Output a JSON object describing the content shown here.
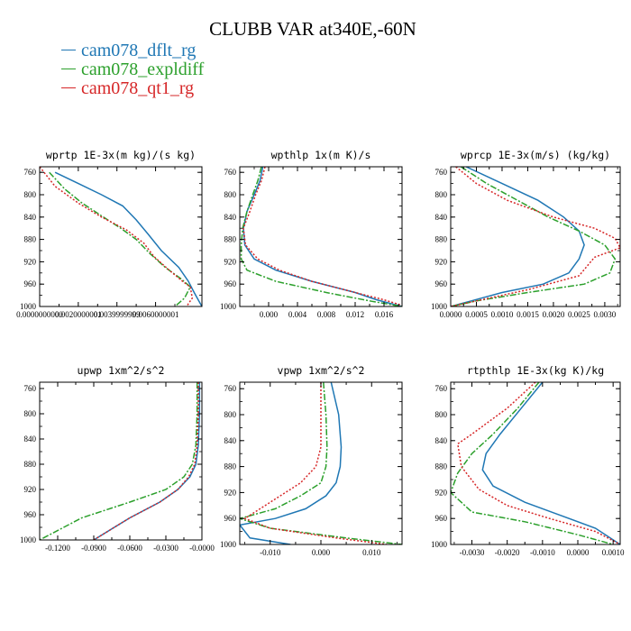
{
  "figure": {
    "title": "CLUBB VAR at340E,-60N",
    "legend": [
      {
        "name": "cam078_dflt_rg",
        "color": "#1f77b4",
        "dash": "solid"
      },
      {
        "name": "cam078_expldiff",
        "color": "#2ca02c",
        "dash": "dashdot"
      },
      {
        "name": "cam078_qt1_rg",
        "color": "#d62728",
        "dash": "dotted"
      }
    ]
  },
  "chart_data": [
    {
      "type": "line",
      "title": "wprtp  1E-3x(m kg)/(s kg)",
      "xlim": [
        0.0,
        0.0084
      ],
      "ylim": [
        1000,
        750
      ],
      "xticks": [
        0.0,
        0.002,
        0.004,
        0.006
      ],
      "xtick_labels": [
        "0.0000000000",
        "0.0020000001",
        "0.0039999999",
        "0.0060000001"
      ],
      "yticks": [
        760,
        800,
        840,
        880,
        920,
        960,
        1000
      ],
      "series": [
        {
          "name": "cam078_dflt_rg",
          "x": [
            0.0008,
            0.002,
            0.0032,
            0.0043,
            0.005,
            0.0056,
            0.0063,
            0.0072,
            0.0077,
            0.008,
            0.0084
          ],
          "y": [
            760,
            780,
            800,
            820,
            845,
            870,
            900,
            930,
            955,
            975,
            1000
          ]
        },
        {
          "name": "cam078_expldiff",
          "x": [
            0.0005,
            0.0013,
            0.0022,
            0.0033,
            0.0042,
            0.005,
            0.0057,
            0.0065,
            0.0073,
            0.0078,
            0.0075,
            0.007
          ],
          "y": [
            760,
            790,
            815,
            840,
            860,
            880,
            905,
            930,
            950,
            965,
            985,
            1000
          ]
        },
        {
          "name": "cam078_qt1_rg",
          "x": [
            0.0,
            0.0008,
            0.002,
            0.0032,
            0.0045,
            0.0054,
            0.0059,
            0.0067,
            0.0074,
            0.0078,
            0.0079,
            0.0076
          ],
          "y": [
            750,
            785,
            815,
            840,
            863,
            887,
            910,
            935,
            955,
            965,
            985,
            1000
          ]
        }
      ]
    },
    {
      "type": "line",
      "title": "wpthlp  1x(m K)/s",
      "xlim": [
        -0.004,
        0.0185
      ],
      "ylim": [
        1000,
        750
      ],
      "xticks": [
        0.0,
        0.004,
        0.008,
        0.012,
        0.016
      ],
      "xtick_labels": [
        "0.000",
        "0.004",
        "0.008",
        "0.012",
        "0.016"
      ],
      "yticks": [
        760,
        800,
        840,
        880,
        920,
        960,
        1000
      ],
      "series": [
        {
          "name": "cam078_dflt_rg",
          "x": [
            -0.0008,
            -0.0012,
            -0.002,
            -0.003,
            -0.0035,
            -0.0033,
            -0.002,
            0.001,
            0.006,
            0.012,
            0.015,
            0.0185
          ],
          "y": [
            750,
            775,
            800,
            830,
            860,
            890,
            915,
            935,
            955,
            975,
            988,
            1000
          ]
        },
        {
          "name": "cam078_expldiff",
          "x": [
            -0.001,
            -0.0015,
            -0.0022,
            -0.003,
            -0.0036,
            -0.0038,
            -0.0038,
            -0.003,
            0.001,
            0.008,
            0.014,
            0.0185
          ],
          "y": [
            750,
            775,
            800,
            830,
            860,
            890,
            915,
            935,
            955,
            975,
            990,
            1000
          ]
        },
        {
          "name": "cam078_qt1_rg",
          "x": [
            -0.0005,
            -0.001,
            -0.0018,
            -0.0026,
            -0.0035,
            -0.0032,
            -0.0015,
            0.0015,
            0.006,
            0.012,
            0.016,
            0.019
          ],
          "y": [
            750,
            775,
            800,
            830,
            860,
            890,
            915,
            935,
            955,
            975,
            988,
            1000
          ]
        }
      ]
    },
    {
      "type": "line",
      "title": "wprcp  1E-3x(m/s) (kg/kg)",
      "xlim": [
        0.0,
        0.0033
      ],
      "ylim": [
        1000,
        750
      ],
      "xticks": [
        0.0,
        0.0005,
        0.001,
        0.0015,
        0.002,
        0.0025,
        0.003
      ],
      "xtick_labels": [
        "0.0000",
        "0.0005",
        "0.0010",
        "0.0015",
        "0.0020",
        "0.0025",
        "0.0030"
      ],
      "yticks": [
        760,
        800,
        840,
        880,
        920,
        960,
        1000
      ],
      "series": [
        {
          "name": "cam078_dflt_rg",
          "x": [
            0.0003,
            0.001,
            0.0017,
            0.0022,
            0.0025,
            0.0026,
            0.0025,
            0.0023,
            0.0018,
            0.001,
            0.0004,
            0.0
          ],
          "y": [
            750,
            780,
            810,
            840,
            865,
            890,
            915,
            940,
            960,
            975,
            990,
            1000
          ]
        },
        {
          "name": "cam078_expldiff",
          "x": [
            0.0002,
            0.0007,
            0.0013,
            0.0019,
            0.0025,
            0.003,
            0.0032,
            0.0031,
            0.0026,
            0.0015,
            0.0005,
            0.0
          ],
          "y": [
            750,
            780,
            810,
            840,
            865,
            890,
            915,
            940,
            960,
            975,
            990,
            1000
          ]
        },
        {
          "name": "cam078_qt1_rg",
          "x": [
            0.0001,
            0.0005,
            0.0011,
            0.002,
            0.0028,
            0.0032,
            0.0033,
            0.0028,
            0.0025,
            0.0015,
            0.0005,
            0.0
          ],
          "y": [
            750,
            780,
            810,
            840,
            860,
            878,
            895,
            912,
            945,
            970,
            990,
            1000
          ]
        }
      ]
    },
    {
      "type": "line",
      "title": "upwp  1xm^2/s^2",
      "xlim": [
        -0.135,
        0.0
      ],
      "ylim": [
        1000,
        750
      ],
      "xticks": [
        -0.12,
        -0.09,
        -0.06,
        -0.03,
        0.0
      ],
      "xtick_labels": [
        "-0.1200",
        "-0.0900",
        "-0.0600",
        "-0.0300",
        "-0.0000"
      ],
      "yticks": [
        760,
        800,
        840,
        880,
        920,
        960,
        1000
      ],
      "series": [
        {
          "name": "cam078_dflt_rg",
          "x": [
            -0.002,
            -0.002,
            -0.003,
            -0.005,
            -0.01,
            -0.02,
            -0.035,
            -0.06,
            -0.09
          ],
          "y": [
            750,
            800,
            850,
            880,
            900,
            920,
            940,
            965,
            1000
          ]
        },
        {
          "name": "cam078_expldiff",
          "x": [
            -0.004,
            -0.004,
            -0.005,
            -0.008,
            -0.015,
            -0.03,
            -0.06,
            -0.1,
            -0.135
          ],
          "y": [
            750,
            800,
            850,
            880,
            900,
            920,
            940,
            965,
            1000
          ]
        },
        {
          "name": "cam078_qt1_rg",
          "x": [
            -0.003,
            -0.003,
            -0.004,
            -0.006,
            -0.011,
            -0.02,
            -0.035,
            -0.06,
            -0.09
          ],
          "y": [
            750,
            800,
            850,
            880,
            900,
            920,
            940,
            965,
            1000
          ]
        }
      ]
    },
    {
      "type": "line",
      "title": "vpwp  1xm^2/s^2",
      "xlim": [
        -0.016,
        0.016
      ],
      "ylim": [
        1000,
        750
      ],
      "xticks": [
        -0.01,
        0.0,
        0.01
      ],
      "xtick_labels": [
        "-0.010",
        "0.000",
        "0.010"
      ],
      "yticks": [
        760,
        800,
        840,
        880,
        920,
        960,
        1000
      ],
      "series": [
        {
          "name": "cam078_dflt_rg",
          "x": [
            0.002,
            0.0035,
            0.004,
            0.0038,
            0.003,
            0.001,
            -0.003,
            -0.009,
            -0.016,
            -0.014,
            -0.006
          ],
          "y": [
            750,
            800,
            850,
            880,
            905,
            925,
            945,
            960,
            970,
            990,
            1000
          ]
        },
        {
          "name": "cam078_expldiff",
          "x": [
            0.0005,
            0.001,
            0.0012,
            0.001,
            0.0,
            -0.004,
            -0.009,
            -0.016,
            -0.01,
            0.005,
            0.016
          ],
          "y": [
            750,
            800,
            850,
            880,
            905,
            925,
            945,
            960,
            975,
            990,
            1000
          ]
        },
        {
          "name": "cam078_qt1_rg",
          "x": [
            0.0,
            0.0,
            0.0,
            -0.001,
            -0.004,
            -0.008,
            -0.012,
            -0.015,
            -0.01,
            0.003,
            0.013
          ],
          "y": [
            750,
            800,
            850,
            880,
            905,
            925,
            945,
            960,
            975,
            990,
            1000
          ]
        }
      ]
    },
    {
      "type": "line",
      "title": "rtpthlp  1E-3x(kg K)/kg",
      "xlim": [
        -0.0036,
        0.0012
      ],
      "ylim": [
        1000,
        750
      ],
      "xticks": [
        -0.003,
        -0.002,
        -0.001,
        0.0,
        0.001
      ],
      "xtick_labels": [
        "-0.0030",
        "-0.0020",
        "-0.0010",
        "0.0000",
        "0.0010"
      ],
      "yticks": [
        760,
        800,
        840,
        880,
        920,
        960,
        1000
      ],
      "series": [
        {
          "name": "cam078_dflt_rg",
          "x": [
            -0.001,
            -0.0016,
            -0.0022,
            -0.0026,
            -0.0027,
            -0.0024,
            -0.0015,
            -0.0005,
            0.0005,
            0.0012
          ],
          "y": [
            750,
            790,
            830,
            860,
            885,
            910,
            935,
            955,
            975,
            1000
          ]
        },
        {
          "name": "cam078_expldiff",
          "x": [
            -0.0011,
            -0.0017,
            -0.0024,
            -0.003,
            -0.0034,
            -0.0036,
            -0.003,
            -0.0015,
            0.0,
            0.001
          ],
          "y": [
            750,
            790,
            830,
            860,
            890,
            920,
            950,
            965,
            985,
            1000
          ]
        },
        {
          "name": "cam078_qt1_rg",
          "x": [
            -0.0012,
            -0.002,
            -0.003,
            -0.0034,
            -0.0033,
            -0.0028,
            -0.002,
            -0.0008,
            0.0005,
            0.0012
          ],
          "y": [
            750,
            790,
            830,
            845,
            880,
            915,
            940,
            960,
            980,
            1000
          ]
        }
      ]
    }
  ]
}
